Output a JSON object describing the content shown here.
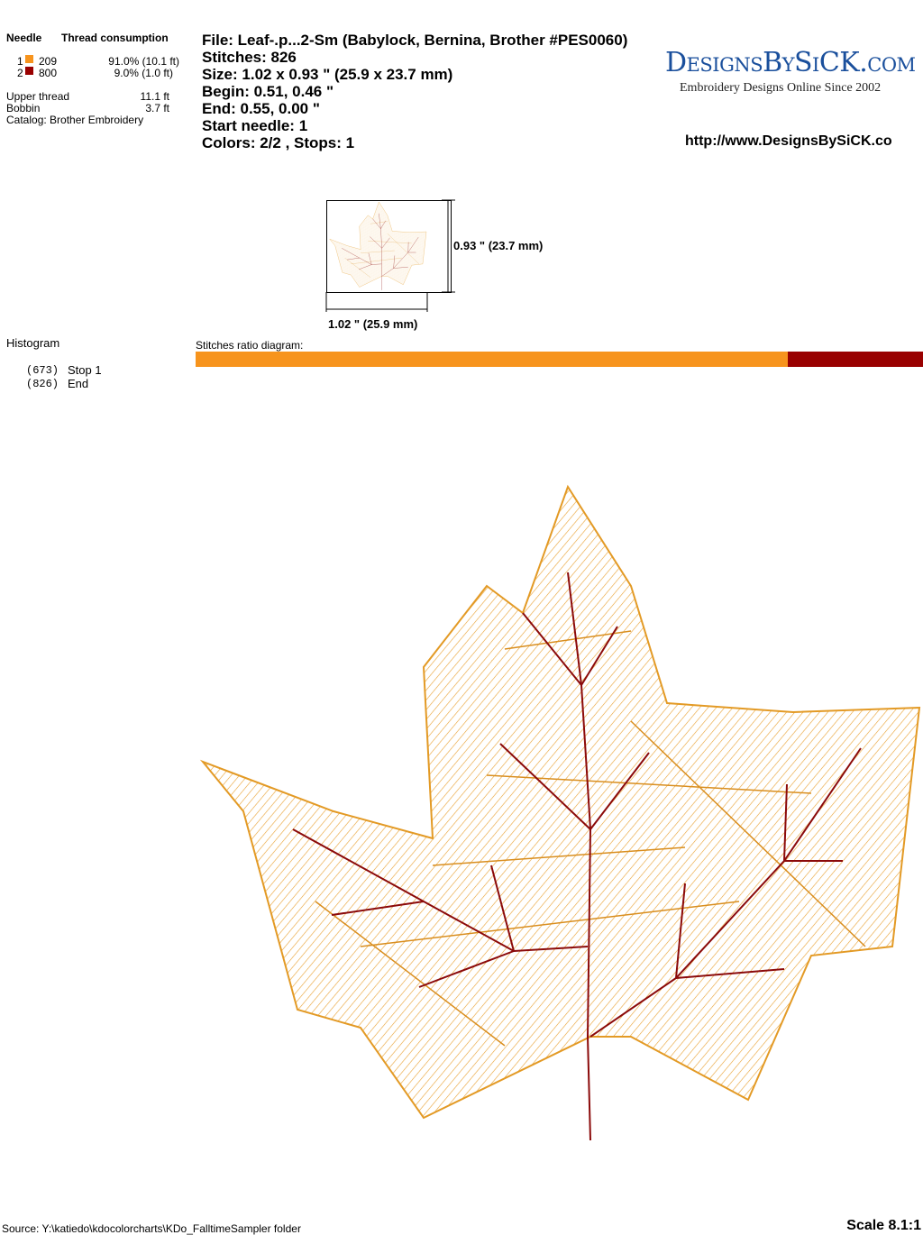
{
  "thread_table": {
    "headers": [
      "Needle",
      "Thread consumption"
    ],
    "rows": [
      {
        "needle": "1",
        "code": "209",
        "usage": "91.0% (10.1 ft)"
      },
      {
        "needle": "2",
        "code": "800",
        "usage": "9.0% (1.0 ft)"
      }
    ]
  },
  "totals": [
    {
      "label": "Upper thread",
      "value": "11.1 ft"
    },
    {
      "label": "Bobbin",
      "value": "3.7 ft"
    }
  ],
  "catalog": "Catalog: Brother Embroidery",
  "info": [
    "File: Leaf-.p...2-Sm  (Babylock, Bernina, Brother #PES0060)",
    "Stitches: 826",
    "Size: 1.02 x 0.93 \" (25.9 x 23.7 mm)",
    "Begin: 0.51, 0.46 \"",
    "End: 0.55, 0.00 \"",
    "Start needle: 1",
    "Colors: 2/2 , Stops: 1"
  ],
  "logo": {
    "name": "DesignsBySiCK.com",
    "tagline": "Embroidery Designs Online Since 2002",
    "url": "http://www.DesignsBySiCK.co"
  },
  "preview": {
    "height_label": "0.93 \" (23.7 mm)",
    "width_label": "1.02 \" (25.9 mm)"
  },
  "histogram": {
    "title": "Histogram",
    "entries": [
      {
        "count": "(673)",
        "label": "Stop 1"
      },
      {
        "count": "(826)",
        "label": "End"
      }
    ]
  },
  "ratio_label": "Stitches ratio diagram:",
  "footer": {
    "source": "Source: Y:\\katiedo\\kdocolorcharts\\KDo_FalltimeSampler folder",
    "scale": "Scale 8.1:1"
  }
}
